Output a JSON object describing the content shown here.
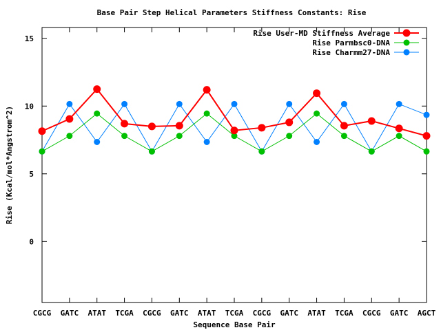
{
  "chart_data": {
    "type": "line",
    "title": "Base Pair Step Helical Parameters Stiffness Constants: Rise",
    "xlabel": "Sequence Base Pair",
    "ylabel": "Rise (Kcal/mol*Angstrom^2)",
    "ylim": [
      -4.5,
      15.8
    ],
    "yticks": [
      "0",
      "5",
      "10",
      "15"
    ],
    "categories": [
      "CGCG",
      "GATC",
      "ATAT",
      "TCGA",
      "CGCG",
      "GATC",
      "ATAT",
      "TCGA",
      "CGCG",
      "GATC",
      "ATAT",
      "TCGA",
      "CGCG",
      "GATC",
      "AGCT"
    ],
    "legend_position": "top-right",
    "grid": false,
    "series": [
      {
        "name": "Rise User-MD Stiffness Average",
        "color": "#ff0000",
        "values": [
          8.15,
          9.05,
          11.25,
          8.7,
          8.5,
          8.55,
          11.2,
          8.2,
          8.4,
          8.8,
          10.95,
          8.55,
          8.9,
          8.35,
          7.8
        ]
      },
      {
        "name": "Rise Parmbsc0-DNA",
        "color": "#00c000",
        "values": [
          6.65,
          7.8,
          9.45,
          7.8,
          6.65,
          7.8,
          9.45,
          7.8,
          6.65,
          7.8,
          9.45,
          7.8,
          6.65,
          7.8,
          6.65
        ]
      },
      {
        "name": "Rise Charmm27-DNA",
        "color": "#0080ff",
        "values": [
          6.65,
          10.15,
          7.35,
          10.15,
          6.65,
          10.15,
          7.35,
          10.15,
          6.65,
          10.15,
          7.35,
          10.15,
          6.65,
          10.15,
          9.35
        ]
      }
    ]
  }
}
